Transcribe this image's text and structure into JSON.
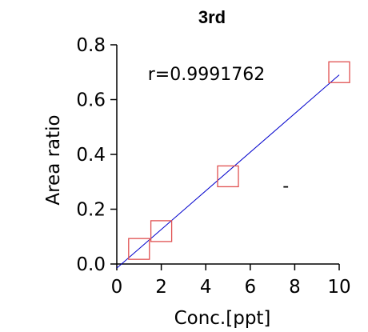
{
  "chart_data": {
    "type": "scatter",
    "title": "3rd",
    "xlabel": "Conc.[ppt]",
    "ylabel": "Area ratio",
    "xlim": [
      0,
      10
    ],
    "ylim": [
      0,
      0.8
    ],
    "xticks": [
      "0",
      "2",
      "4",
      "6",
      "8",
      "10"
    ],
    "yticks": [
      "0.0",
      "0.2",
      "0.4",
      "0.6",
      "0.8"
    ],
    "xtick_values": [
      0,
      2,
      4,
      6,
      8,
      10
    ],
    "ytick_values": [
      0,
      0.2,
      0.4,
      0.6,
      0.8
    ],
    "points": [
      {
        "x": 1,
        "y": 0.055
      },
      {
        "x": 2,
        "y": 0.12
      },
      {
        "x": 5,
        "y": 0.32
      },
      {
        "x": 10,
        "y": 0.7
      }
    ],
    "fit_line": {
      "x": [
        0,
        10
      ],
      "y": [
        -0.015,
        0.69
      ]
    },
    "annotation": "r=0.9991762",
    "marker": "-",
    "marker_point": {
      "x": 7.6,
      "y": 0.285
    },
    "colors": {
      "points": "#e05050",
      "fit_line": "#0000cc",
      "axes": "#000000"
    },
    "grid": false
  }
}
